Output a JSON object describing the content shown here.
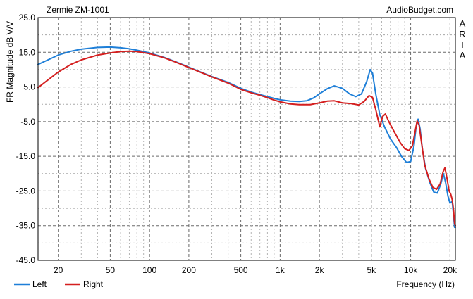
{
  "chart_data": {
    "type": "line",
    "title": "Zermie ZM-1001",
    "watermark": "AudioBudget.com",
    "side_label": "ARTA",
    "xlabel": "Frequency (Hz)",
    "ylabel": "FR Magnitude dB V/V",
    "x_scale": "log",
    "xlim": [
      14,
      22000
    ],
    "ylim": [
      -45,
      25
    ],
    "grid": true,
    "legend_placement": "bottom-left",
    "y_ticks": [
      {
        "value": 25,
        "label": "25.0"
      },
      {
        "value": 15,
        "label": "15.0"
      },
      {
        "value": 5,
        "label": "5.0"
      },
      {
        "value": -5,
        "label": "-5.0"
      },
      {
        "value": -15,
        "label": "-15.0"
      },
      {
        "value": -25,
        "label": "-25.0"
      },
      {
        "value": -35,
        "label": "-35.0"
      },
      {
        "value": -45,
        "label": "-45.0"
      }
    ],
    "x_ticks": [
      {
        "value": 20,
        "label": "20"
      },
      {
        "value": 50,
        "label": "50"
      },
      {
        "value": 100,
        "label": "100"
      },
      {
        "value": 200,
        "label": "200"
      },
      {
        "value": 500,
        "label": "500"
      },
      {
        "value": 1000,
        "label": "1k"
      },
      {
        "value": 2000,
        "label": "2k"
      },
      {
        "value": 5000,
        "label": "5k"
      },
      {
        "value": 10000,
        "label": "10k"
      },
      {
        "value": 20000,
        "label": "20k"
      }
    ],
    "series": [
      {
        "name": "Left",
        "color": "#1e7fd8",
        "points": [
          [
            14,
            11.5
          ],
          [
            16,
            12.5
          ],
          [
            20,
            14.2
          ],
          [
            25,
            15.3
          ],
          [
            30,
            15.9
          ],
          [
            40,
            16.4
          ],
          [
            50,
            16.5
          ],
          [
            60,
            16.3
          ],
          [
            70,
            16.0
          ],
          [
            80,
            15.6
          ],
          [
            100,
            14.8
          ],
          [
            130,
            13.5
          ],
          [
            160,
            12.2
          ],
          [
            200,
            10.7
          ],
          [
            250,
            9.2
          ],
          [
            300,
            8.0
          ],
          [
            400,
            6.3
          ],
          [
            500,
            4.6
          ],
          [
            600,
            3.5
          ],
          [
            700,
            2.8
          ],
          [
            800,
            2.2
          ],
          [
            900,
            1.7
          ],
          [
            1000,
            1.3
          ],
          [
            1200,
            0.9
          ],
          [
            1400,
            0.8
          ],
          [
            1600,
            1.0
          ],
          [
            1800,
            1.8
          ],
          [
            2000,
            3.0
          ],
          [
            2300,
            4.5
          ],
          [
            2600,
            5.3
          ],
          [
            3000,
            4.6
          ],
          [
            3400,
            3.0
          ],
          [
            3800,
            2.2
          ],
          [
            4200,
            3.0
          ],
          [
            4600,
            6.5
          ],
          [
            4900,
            10.0
          ],
          [
            5100,
            9.0
          ],
          [
            5400,
            3.0
          ],
          [
            5800,
            -3.0
          ],
          [
            6300,
            -6.5
          ],
          [
            7000,
            -10.0
          ],
          [
            7800,
            -12.5
          ],
          [
            8500,
            -15.0
          ],
          [
            9300,
            -16.8
          ],
          [
            10000,
            -16.5
          ],
          [
            10600,
            -12.0
          ],
          [
            11000,
            -6.5
          ],
          [
            11400,
            -4.3
          ],
          [
            11800,
            -7.0
          ],
          [
            12300,
            -13.0
          ],
          [
            13000,
            -18.5
          ],
          [
            14000,
            -22.5
          ],
          [
            15000,
            -25.3
          ],
          [
            16000,
            -25.6
          ],
          [
            17000,
            -23.0
          ],
          [
            17800,
            -20.0
          ],
          [
            18500,
            -22.5
          ],
          [
            19300,
            -26.5
          ],
          [
            20000,
            -28.5
          ],
          [
            20800,
            -28.0
          ],
          [
            21300,
            -32.0
          ],
          [
            21700,
            -35.5
          ],
          [
            22000,
            -35.5
          ]
        ]
      },
      {
        "name": "Right",
        "color": "#d41f1f",
        "points": [
          [
            14,
            4.8
          ],
          [
            16,
            6.5
          ],
          [
            20,
            9.3
          ],
          [
            25,
            11.5
          ],
          [
            30,
            12.8
          ],
          [
            40,
            14.2
          ],
          [
            50,
            14.8
          ],
          [
            60,
            15.2
          ],
          [
            70,
            15.3
          ],
          [
            80,
            15.2
          ],
          [
            100,
            14.6
          ],
          [
            130,
            13.4
          ],
          [
            160,
            12.1
          ],
          [
            200,
            10.6
          ],
          [
            250,
            9.1
          ],
          [
            300,
            7.9
          ],
          [
            400,
            6.1
          ],
          [
            500,
            4.3
          ],
          [
            600,
            3.3
          ],
          [
            700,
            2.6
          ],
          [
            800,
            1.9
          ],
          [
            900,
            1.2
          ],
          [
            1000,
            0.7
          ],
          [
            1200,
            0.1
          ],
          [
            1400,
            -0.1
          ],
          [
            1700,
            -0.1
          ],
          [
            2000,
            0.4
          ],
          [
            2300,
            0.9
          ],
          [
            2600,
            1.0
          ],
          [
            3000,
            0.4
          ],
          [
            3500,
            0.2
          ],
          [
            4000,
            -0.2
          ],
          [
            4400,
            0.8
          ],
          [
            4800,
            2.5
          ],
          [
            5100,
            2.0
          ],
          [
            5400,
            -1.5
          ],
          [
            5800,
            -6.5
          ],
          [
            6100,
            -3.5
          ],
          [
            6400,
            -2.8
          ],
          [
            6800,
            -5.0
          ],
          [
            7500,
            -8.0
          ],
          [
            8300,
            -11.0
          ],
          [
            9000,
            -12.8
          ],
          [
            9700,
            -13.3
          ],
          [
            10300,
            -12.0
          ],
          [
            10800,
            -8.0
          ],
          [
            11200,
            -4.8
          ],
          [
            11600,
            -6.0
          ],
          [
            12100,
            -11.0
          ],
          [
            12800,
            -17.5
          ],
          [
            13800,
            -21.5
          ],
          [
            14800,
            -24.0
          ],
          [
            15800,
            -24.5
          ],
          [
            16800,
            -23.0
          ],
          [
            17700,
            -19.5
          ],
          [
            18300,
            -18.3
          ],
          [
            19000,
            -21.5
          ],
          [
            19700,
            -25.0
          ],
          [
            20300,
            -26.0
          ],
          [
            20800,
            -27.5
          ],
          [
            21300,
            -30.5
          ],
          [
            21700,
            -34.5
          ],
          [
            22000,
            -35.0
          ]
        ]
      }
    ]
  }
}
